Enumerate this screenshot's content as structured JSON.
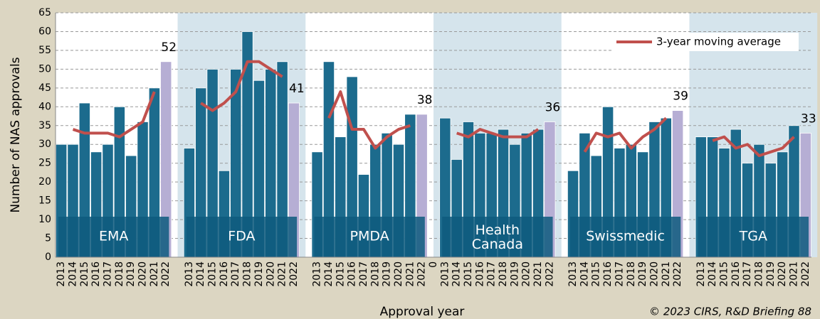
{
  "chart_data": {
    "type": "bar",
    "y_label": "Number of NAS approvals",
    "x_label": "Approval year",
    "source": "© 2023 CIRS, R&D Briefing 88",
    "ylim": [
      0,
      65
    ],
    "yticks": [
      0,
      5,
      10,
      15,
      20,
      25,
      30,
      35,
      40,
      45,
      50,
      55,
      60,
      65
    ],
    "grid": true,
    "bar_color": "#1c6b8d",
    "bar_colors": [
      "#1c6b8d",
      "#1c6b8d",
      "#1c6b8d",
      "#1c6b8d",
      "#1c6b8d",
      "#1c6b8d",
      "#1c6b8d",
      "#1c6b8d",
      "#1c6b8d",
      "#b6aed4"
    ],
    "line_name": "3-year moving average",
    "line_color": "#c0504d",
    "legend": "upper right",
    "separator_label": "0",
    "groups": [
      {
        "name": "EMA",
        "shaded": false,
        "categories": [
          "2013",
          "2014",
          "2015",
          "2016",
          "2017",
          "2018",
          "2019",
          "2020",
          "2021",
          "2022"
        ],
        "values": [
          30,
          30,
          41,
          28,
          30,
          40,
          27,
          36,
          45,
          52
        ],
        "moving_average": [
          null,
          34,
          33,
          33,
          33,
          32,
          34,
          36,
          44,
          null
        ]
      },
      {
        "name": "FDA",
        "shaded": true,
        "categories": [
          "2013",
          "2014",
          "2015",
          "2016",
          "2017",
          "2018",
          "2019",
          "2020",
          "2021",
          "2022"
        ],
        "values": [
          29,
          45,
          50,
          23,
          50,
          60,
          47,
          50,
          52,
          41
        ],
        "moving_average": [
          null,
          41,
          39,
          41,
          44,
          52,
          52,
          50,
          48,
          null
        ]
      },
      {
        "name": "PMDA",
        "shaded": false,
        "categories": [
          "2013",
          "2014",
          "2015",
          "2016",
          "2017",
          "2018",
          "2019",
          "2020",
          "2021",
          "2022"
        ],
        "values": [
          28,
          52,
          32,
          48,
          22,
          30,
          33,
          30,
          38,
          38
        ],
        "moving_average": [
          null,
          37,
          44,
          34,
          34,
          29,
          32,
          34,
          35,
          null
        ]
      },
      {
        "name": "Health Canada",
        "shaded": true,
        "categories": [
          "2013",
          "2014",
          "2015",
          "2016",
          "2017",
          "2018",
          "2019",
          "2020",
          "2021",
          "2022"
        ],
        "values": [
          37,
          26,
          36,
          33,
          33,
          34,
          30,
          33,
          34,
          36
        ],
        "moving_average": [
          null,
          33,
          32,
          34,
          33,
          32,
          32,
          32,
          34,
          null
        ]
      },
      {
        "name": "Swissmedic",
        "shaded": false,
        "categories": [
          "2013",
          "2014",
          "2015",
          "2016",
          "2017",
          "2018",
          "2019",
          "2020",
          "2021",
          "2022"
        ],
        "values": [
          23,
          33,
          27,
          40,
          29,
          30,
          28,
          36,
          37,
          39
        ],
        "moving_average": [
          null,
          28,
          33,
          32,
          33,
          29,
          32,
          34,
          37,
          null
        ]
      },
      {
        "name": "TGA",
        "shaded": true,
        "categories": [
          "2013",
          "2014",
          "2015",
          "2016",
          "2017",
          "2018",
          "2019",
          "2020",
          "2021",
          "2022"
        ],
        "values": [
          32,
          32,
          29,
          34,
          25,
          30,
          25,
          28,
          35,
          33
        ],
        "moving_average": [
          null,
          31,
          32,
          29,
          30,
          27,
          28,
          29,
          32,
          null
        ]
      }
    ]
  }
}
